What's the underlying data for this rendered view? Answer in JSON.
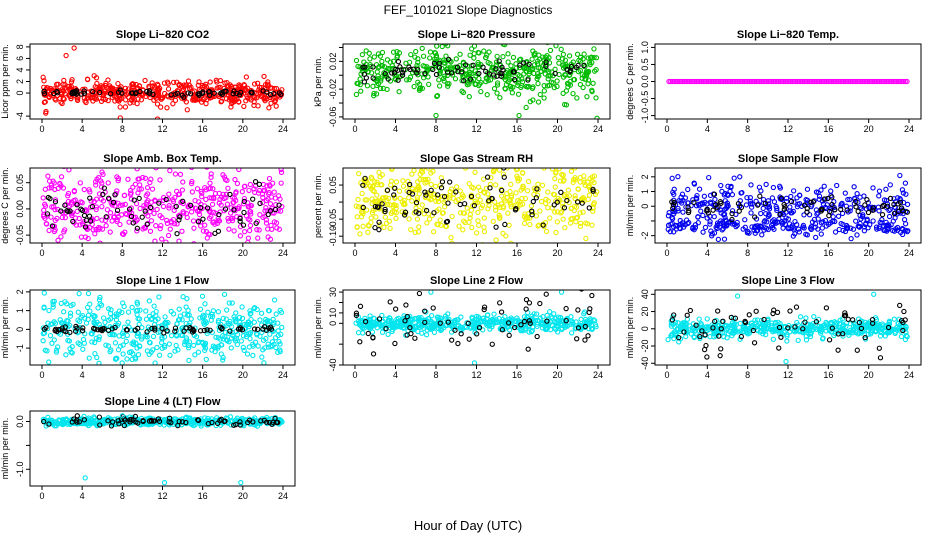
{
  "figure": {
    "title": "FEF_101021  Slope Diagnostics",
    "xlabel": "Hour of Day (UTC)"
  },
  "chart_data": [
    {
      "type": "scatter",
      "title": "Slope Li−820 CO2",
      "ylabel": "Licor ppm per min.",
      "color": "#ff0000",
      "xlim": [
        0,
        24
      ],
      "xticks": [
        0,
        4,
        8,
        12,
        16,
        20,
        24
      ],
      "ylim": [
        -4.5,
        8.5
      ],
      "yticks": [
        -4,
        0,
        2,
        4,
        6,
        8
      ],
      "ytick_labels": [
        "-4",
        "0",
        "2",
        "4",
        "6",
        "8"
      ],
      "main_spread": 1.0,
      "black_spread": 0.25,
      "center": 0,
      "outliers": [
        [
          3.2,
          7.8
        ],
        [
          2.4,
          6.5
        ],
        [
          0.4,
          -3.2
        ],
        [
          7.8,
          -4.3
        ],
        [
          11.5,
          -4.5
        ],
        [
          5.2,
          3.0
        ]
      ]
    },
    {
      "type": "scatter",
      "title": "Slope Li−820 Pressure",
      "ylabel": "kPa per min.",
      "color": "#00bb00",
      "xlim": [
        0,
        24
      ],
      "xticks": [
        0,
        4,
        8,
        12,
        16,
        20,
        24
      ],
      "ylim": [
        -0.063,
        0.045
      ],
      "yticks": [
        -0.06,
        -0.04,
        -0.02,
        0.0,
        0.02,
        0.04
      ],
      "ytick_labels": [
        "-0.06",
        "",
        "-0.02",
        "",
        "0.02",
        ""
      ],
      "main_spread": 0.018,
      "black_spread": 0.008,
      "center": 0.005,
      "outliers": [
        [
          8.0,
          -0.058
        ],
        [
          16.2,
          -0.058
        ],
        [
          23.9,
          -0.062
        ],
        [
          11.8,
          0.042
        ],
        [
          23.6,
          0.038
        ]
      ]
    },
    {
      "type": "scatter",
      "title": "Slope Li−820 Temp.",
      "ylabel": "degrees C per min.",
      "color": "#ff00ff",
      "xlim": [
        0,
        24
      ],
      "xticks": [
        0,
        4,
        8,
        12,
        16,
        20,
        24
      ],
      "ylim": [
        -1.1,
        1.1
      ],
      "yticks": [
        -1.0,
        -0.5,
        0.0,
        0.5,
        1.0
      ],
      "ytick_labels": [
        "-1.0",
        "-0.5",
        "0.0",
        "0.5",
        "1.0"
      ],
      "main_spread": 0.0,
      "black_spread": 0.0,
      "center": 0,
      "flat": true,
      "outliers": []
    },
    {
      "type": "scatter",
      "title": "Slope Amb. Box Temp.",
      "ylabel": "degrees C per min.",
      "color": "#ff00ff",
      "xlim": [
        0,
        24
      ],
      "xticks": [
        0,
        4,
        8,
        12,
        16,
        20,
        24
      ],
      "ylim": [
        -0.065,
        0.078
      ],
      "yticks": [
        -0.05,
        0.0,
        0.05
      ],
      "ytick_labels": [
        "-0.05",
        "0.00",
        "0.05"
      ],
      "main_spread": 0.035,
      "black_spread": 0.02,
      "center": 0.0,
      "outliers": []
    },
    {
      "type": "scatter",
      "title": "Slope Gas Stream RH",
      "ylabel": "percent per min.",
      "color": "#eeee00",
      "xlim": [
        0,
        24
      ],
      "xticks": [
        0,
        4,
        8,
        12,
        16,
        20,
        24
      ],
      "ylim": [
        -0.12,
        0.1
      ],
      "yticks": [
        -0.1,
        -0.05,
        0.0,
        0.05
      ],
      "ytick_labels": [
        "-0.10",
        "-0.05",
        "",
        "0.05"
      ],
      "main_spread": 0.06,
      "black_spread": 0.04,
      "center": 0.0,
      "outliers": []
    },
    {
      "type": "scatter",
      "title": "Slope Sample Flow",
      "ylabel": "ml/min per min.",
      "color": "#0000ee",
      "xlim": [
        0,
        24
      ],
      "xticks": [
        0,
        4,
        8,
        12,
        16,
        20,
        24
      ],
      "ylim": [
        -2.5,
        2.6
      ],
      "yticks": [
        -2,
        -1,
        0,
        1,
        2
      ],
      "ytick_labels": [
        "-2",
        "",
        "0",
        "1",
        "2"
      ],
      "main_spread": 0.8,
      "black_spread": 0.4,
      "center": 0.0,
      "band": -1.4,
      "outliers": []
    },
    {
      "type": "scatter",
      "title": "Slope Line 1 Flow",
      "ylabel": "ml/min per min.",
      "color": "#00e5ee",
      "xlim": [
        0,
        24
      ],
      "xticks": [
        0,
        4,
        8,
        12,
        16,
        20,
        24
      ],
      "ylim": [
        -1.9,
        2.1
      ],
      "yticks": [
        -1,
        0,
        1,
        2
      ],
      "ytick_labels": [
        "-1",
        "0",
        "1",
        "2"
      ],
      "main_spread": 0.8,
      "black_spread": 0.08,
      "center": 0.0,
      "outliers": []
    },
    {
      "type": "scatter",
      "title": "Slope Line 2 Flow",
      "ylabel": "ml/min per min.",
      "color": "#00e5ee",
      "xlim": [
        0,
        24
      ],
      "xticks": [
        0,
        4,
        8,
        12,
        16,
        20,
        24
      ],
      "ylim": [
        -40,
        32
      ],
      "yticks": [
        -40,
        -20,
        0,
        10,
        20,
        30
      ],
      "ytick_labels": [
        "-40",
        "",
        "0",
        "10",
        "",
        "30"
      ],
      "main_spread": 4,
      "black_spread": 14,
      "center": 0,
      "outliers": [
        [
          11.8,
          -38
        ],
        [
          7.5,
          30
        ],
        [
          20.4,
          30
        ]
      ]
    },
    {
      "type": "scatter",
      "title": "Slope Line 3 Flow",
      "ylabel": "ml/min per min.",
      "color": "#00e5ee",
      "xlim": [
        0,
        24
      ],
      "xticks": [
        0,
        4,
        8,
        12,
        16,
        20,
        24
      ],
      "ylim": [
        -42,
        45
      ],
      "yticks": [
        -40,
        -20,
        0,
        20,
        40
      ],
      "ytick_labels": [
        "-40",
        "-20",
        "0",
        "20",
        "40"
      ],
      "main_spread": 5,
      "black_spread": 16,
      "center": 0,
      "outliers": [
        [
          11.8,
          -38
        ],
        [
          20.5,
          40
        ],
        [
          7.0,
          38
        ]
      ]
    },
    {
      "type": "scatter",
      "title": "Slope Line 4 (LT) Flow",
      "ylabel": "ml/min per min.",
      "color": "#00e5ee",
      "xlim": [
        0,
        24
      ],
      "xticks": [
        0,
        4,
        8,
        12,
        16,
        20,
        24
      ],
      "ylim": [
        -1.35,
        0.22
      ],
      "yticks": [
        -1.0,
        -0.5,
        0.0
      ],
      "ytick_labels": [
        "-1.0",
        "",
        "0.0"
      ],
      "main_spread": 0.04,
      "black_spread": 0.05,
      "center": 0.0,
      "outliers": [
        [
          4.3,
          -1.18
        ],
        [
          12.2,
          -1.28
        ],
        [
          19.8,
          -1.28
        ],
        [
          8.0,
          0.12
        ]
      ]
    }
  ]
}
